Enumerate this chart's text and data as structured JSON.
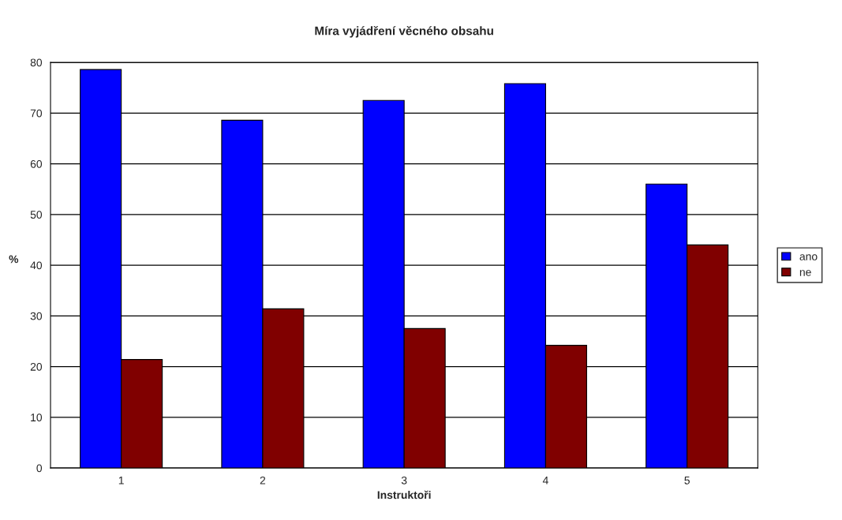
{
  "chart_data": {
    "type": "bar",
    "title": "Míra vyjádření věcného obsahu",
    "xlabel": "Instruktoři",
    "ylabel": "%",
    "categories": [
      "1",
      "2",
      "3",
      "4",
      "5"
    ],
    "series": [
      {
        "name": "ano",
        "color": "#0000ff",
        "values": [
          78.6,
          68.6,
          72.5,
          75.8,
          56
        ]
      },
      {
        "name": "ne",
        "color": "#800000",
        "values": [
          21.4,
          31.4,
          27.5,
          24.2,
          44
        ]
      }
    ],
    "ylim": [
      0,
      80
    ],
    "yticks": [
      0,
      10,
      20,
      30,
      40,
      50,
      60,
      70,
      80
    ],
    "grid": "y",
    "legend": "right"
  }
}
